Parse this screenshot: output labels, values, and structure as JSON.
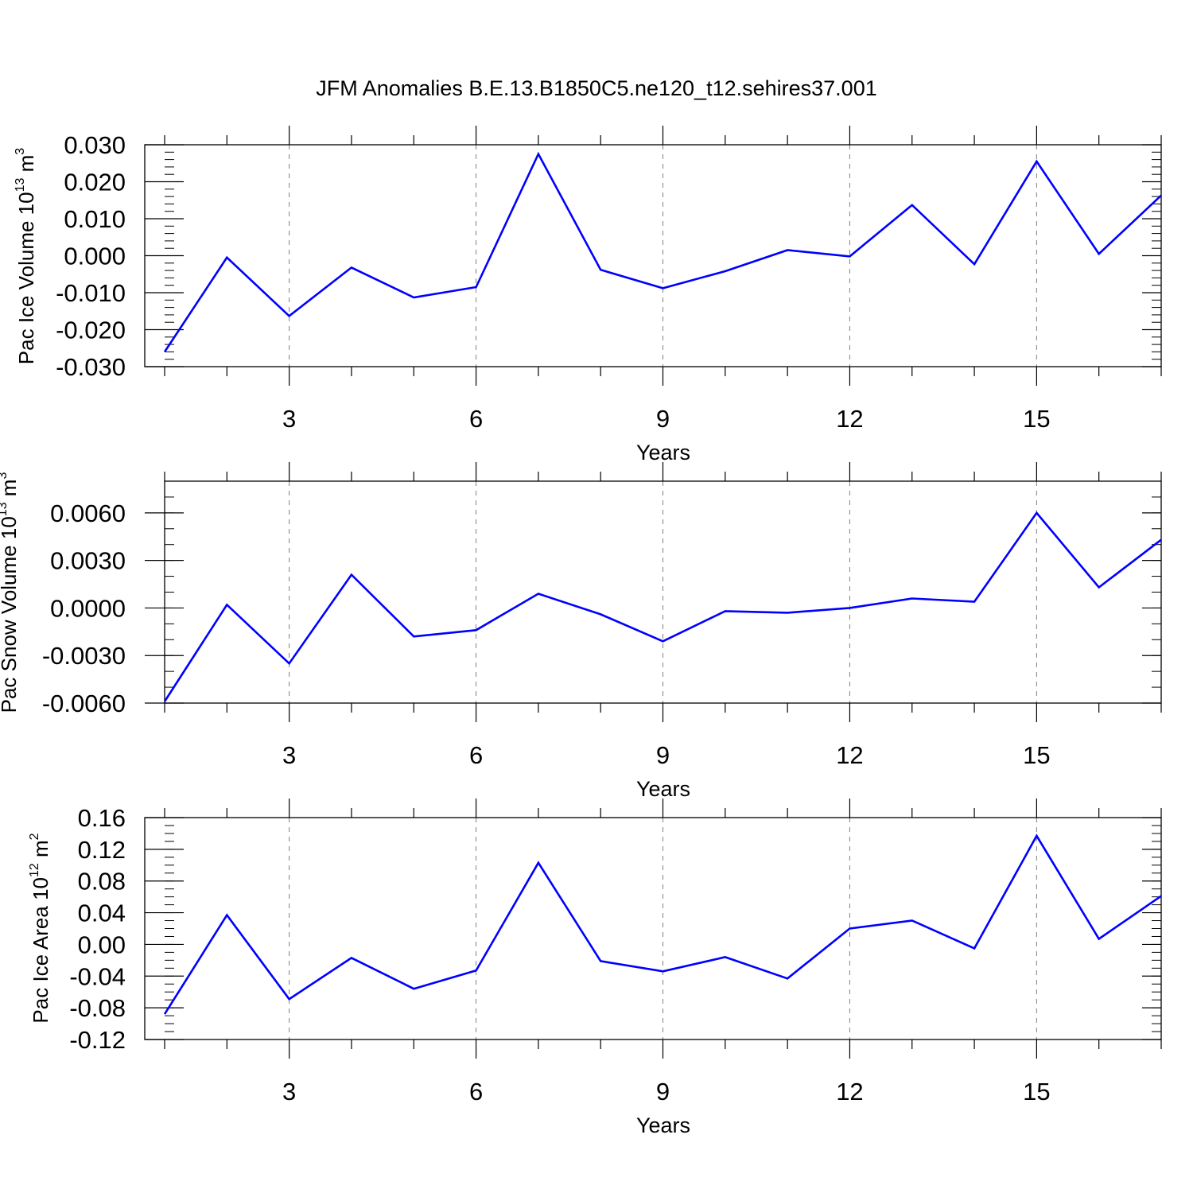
{
  "title": "JFM Anomalies B.E.13.B1850C5.ne120_t12.sehires37.001",
  "colors": {
    "series": "#0000ff",
    "axis": "#000000",
    "grid": "#808080"
  },
  "chart_data": [
    {
      "type": "line",
      "ylabel": {
        "prefix": "Pac Ice Volume 10",
        "exp": "13",
        "unit": " m",
        "unit_exp": "3"
      },
      "xlabel": "Years",
      "x": [
        1,
        2,
        3,
        4,
        5,
        6,
        7,
        8,
        9,
        10,
        11,
        12,
        13,
        14,
        15,
        16,
        17
      ],
      "series": [
        {
          "name": "Pac Ice Volume",
          "values": [
            -0.026,
            -0.0005,
            -0.0163,
            -0.0032,
            -0.0113,
            -0.0085,
            0.0275,
            -0.0038,
            -0.0088,
            -0.0042,
            0.0015,
            -0.0002,
            0.0137,
            -0.0023,
            0.0255,
            0.0005,
            0.0163
          ]
        }
      ],
      "xlim": [
        1,
        17
      ],
      "ylim": [
        -0.03,
        0.03
      ],
      "xticks": [
        3,
        6,
        9,
        12,
        15
      ],
      "xtick_labels": [
        "3",
        "6",
        "9",
        "12",
        "15"
      ],
      "yticks": [
        0.03,
        0.02,
        0.01,
        0.0,
        -0.01,
        -0.02,
        -0.03
      ],
      "ytick_labels": [
        "0.030",
        "0.020",
        "0.010",
        "0.000",
        "-0.010",
        "-0.020",
        "-0.030"
      ],
      "yminor_step": 0.002
    },
    {
      "type": "line",
      "ylabel": {
        "prefix": "Pac Snow Volume 10",
        "exp": "13",
        "unit": " m",
        "unit_exp": "3"
      },
      "xlabel": "Years",
      "x": [
        1,
        2,
        3,
        4,
        5,
        6,
        7,
        8,
        9,
        10,
        11,
        12,
        13,
        14,
        15,
        16,
        17
      ],
      "series": [
        {
          "name": "Pac Snow Volume",
          "values": [
            -0.0059,
            0.0002,
            -0.0035,
            0.0021,
            -0.0018,
            -0.0014,
            0.0009,
            -0.0004,
            -0.0021,
            -0.0002,
            -0.0003,
            0.0,
            0.0006,
            0.0004,
            0.006,
            0.0013,
            0.0043
          ]
        }
      ],
      "xlim": [
        1,
        17
      ],
      "ylim": [
        -0.006,
        0.008
      ],
      "xticks": [
        3,
        6,
        9,
        12,
        15
      ],
      "xtick_labels": [
        "3",
        "6",
        "9",
        "12",
        "15"
      ],
      "yticks": [
        0.006,
        0.003,
        0.0,
        -0.003,
        -0.006
      ],
      "ytick_labels": [
        "0.0060",
        "0.0030",
        "0.0000",
        "-0.0030",
        "-0.0060"
      ],
      "yminor_step": 0.001
    },
    {
      "type": "line",
      "ylabel": {
        "prefix": "Pac Ice Area 10",
        "exp": "12",
        "unit": " m",
        "unit_exp": "2"
      },
      "xlabel": "Years",
      "x": [
        1,
        2,
        3,
        4,
        5,
        6,
        7,
        8,
        9,
        10,
        11,
        12,
        13,
        14,
        15,
        16,
        17
      ],
      "series": [
        {
          "name": "Pac Ice Area",
          "values": [
            -0.088,
            0.037,
            -0.069,
            -0.017,
            -0.056,
            -0.033,
            0.103,
            -0.021,
            -0.034,
            -0.016,
            -0.043,
            0.02,
            0.03,
            -0.005,
            0.137,
            0.007,
            0.061
          ]
        }
      ],
      "xlim": [
        1,
        17
      ],
      "ylim": [
        -0.12,
        0.16
      ],
      "xticks": [
        3,
        6,
        9,
        12,
        15
      ],
      "xtick_labels": [
        "3",
        "6",
        "9",
        "12",
        "15"
      ],
      "yticks": [
        0.16,
        0.12,
        0.08,
        0.04,
        0.0,
        -0.04,
        -0.08,
        -0.12
      ],
      "ytick_labels": [
        "0.16",
        "0.12",
        "0.08",
        "0.04",
        "0.00",
        "-0.04",
        "-0.08",
        "-0.12"
      ],
      "yminor_step": 0.01
    }
  ]
}
